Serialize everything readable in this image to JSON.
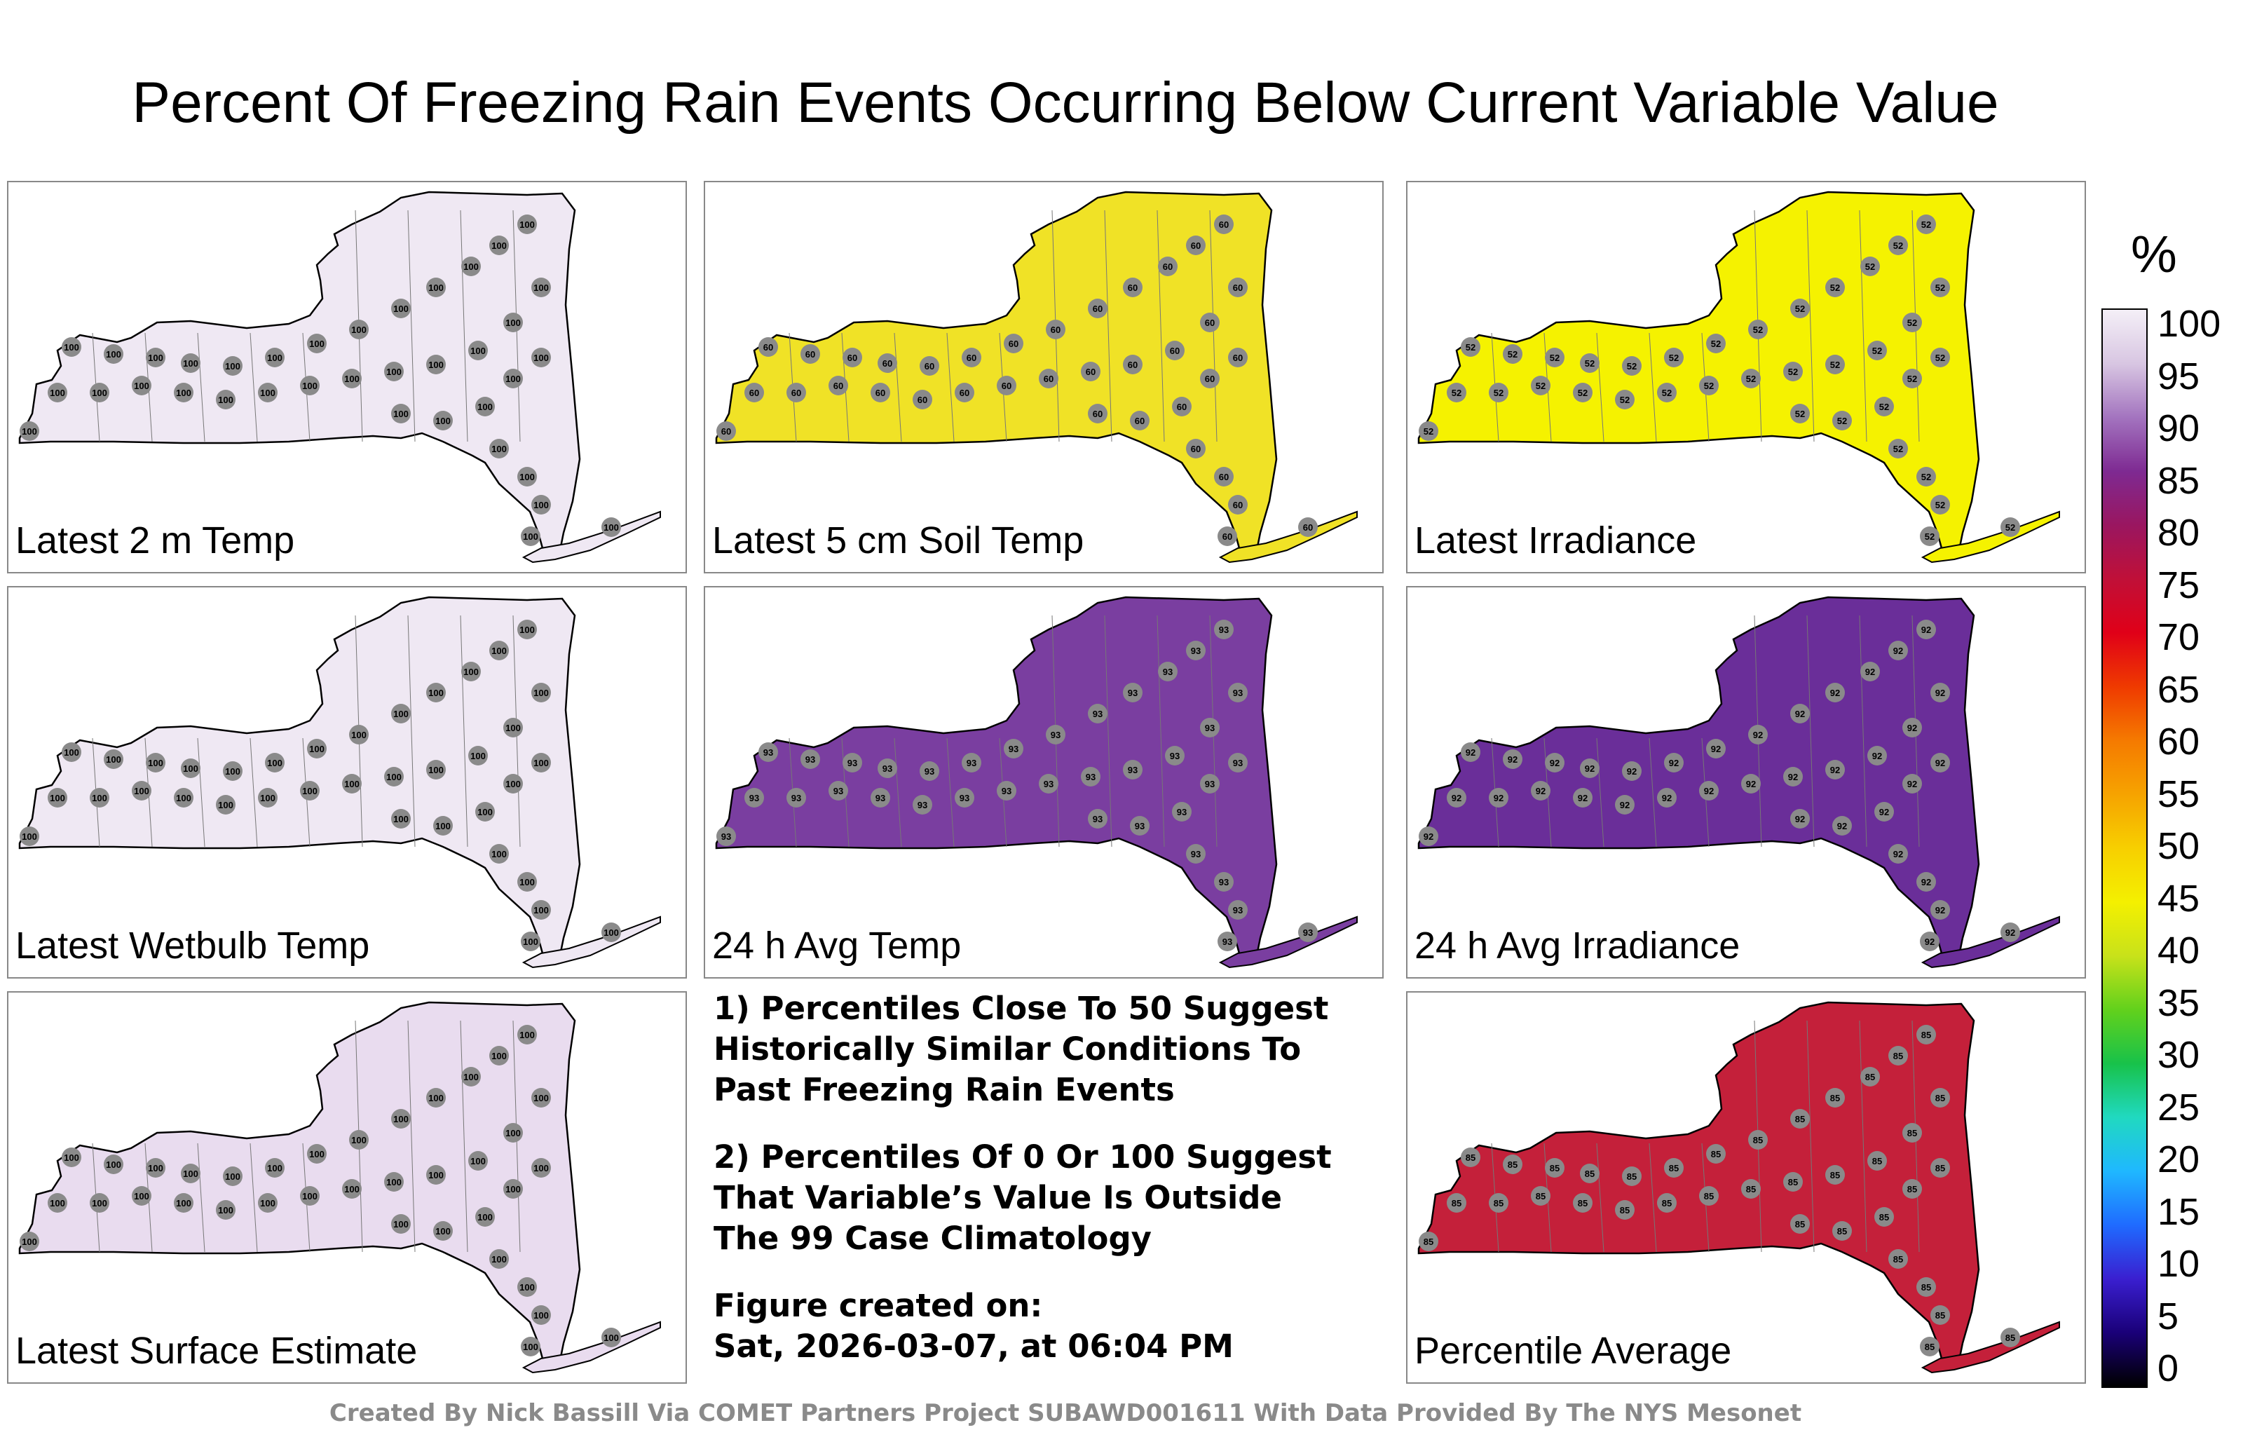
{
  "title": "Percent Of Freezing Rain Events Occurring Below Current Variable Value",
  "panels": [
    {
      "label": "Latest 2 m Temp",
      "fill": "#efe8f3",
      "value": "100"
    },
    {
      "label": "Latest 5 cm Soil Temp",
      "fill": "#f0e226",
      "value": "60"
    },
    {
      "label": "Latest Irradiance",
      "fill": "#f5f200",
      "value": "52"
    },
    {
      "label": "Latest Wetbulb Temp",
      "fill": "#efe8f3",
      "value": "100"
    },
    {
      "label": "24 h Avg Temp",
      "fill": "#7a3ea0",
      "value": "93"
    },
    {
      "label": "24 h Avg Irradiance",
      "fill": "#6a2e99",
      "value": "92"
    },
    {
      "label": "Latest Surface Estimate",
      "fill": "#e9dcef",
      "value": "100"
    },
    {
      "label": "Percentile Average",
      "fill": "#c4203a",
      "value": "85"
    }
  ],
  "notes": [
    "1) Percentiles Close To 50 Suggest\nHistorically Similar Conditions To\nPast Freezing Rain Events",
    "2) Percentiles Of 0 Or 100 Suggest\nThat Variable’s Value Is Outside\nThe 99 Case Climatology",
    "Figure created on:\nSat, 2026-03-07, at 06:04 PM"
  ],
  "credit": "Created By Nick Bassill Via COMET Partners Project SUBAWD001611 With Data Provided By The NYS Mesonet",
  "colorbar": {
    "unit": "%",
    "ticks": [
      "100",
      "95",
      "90",
      "85",
      "80",
      "75",
      "70",
      "65",
      "60",
      "55",
      "50",
      "45",
      "40",
      "35",
      "30",
      "25",
      "20",
      "15",
      "10",
      "5",
      "0"
    ],
    "colors": [
      "#000000",
      "#1a0078",
      "#3a1fd0",
      "#1f6bff",
      "#1fb8ff",
      "#20d9c0",
      "#18c24a",
      "#62d11c",
      "#c8e21a",
      "#f4f000",
      "#f7cf00",
      "#f6a300",
      "#f57a00",
      "#ef3a00",
      "#e00018",
      "#c01038",
      "#9a1660",
      "#7e2a92",
      "#a374bf",
      "#d8c6e2",
      "#f4eff7"
    ]
  }
}
